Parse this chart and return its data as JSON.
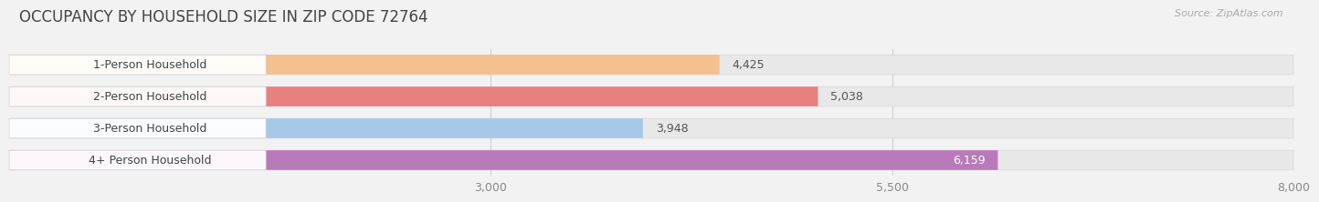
{
  "title": "OCCUPANCY BY HOUSEHOLD SIZE IN ZIP CODE 72764",
  "source": "Source: ZipAtlas.com",
  "categories": [
    "1-Person Household",
    "2-Person Household",
    "3-Person Household",
    "4+ Person Household"
  ],
  "values": [
    4425,
    5038,
    3948,
    6159
  ],
  "bar_colors": [
    "#f5c090",
    "#e88080",
    "#a8c8e8",
    "#b87ab8"
  ],
  "circle_colors": [
    "#e8a060",
    "#c85050",
    "#7098c0",
    "#7840a0"
  ],
  "label_colors": [
    "#444444",
    "#444444",
    "#444444",
    "#ffffff"
  ],
  "xmin": 0,
  "xmax": 8000,
  "xticks": [
    3000,
    5500,
    8000
  ],
  "bar_height": 0.62,
  "background_color": "#f2f2f2",
  "plot_bg_color": "#f2f2f2",
  "title_fontsize": 12,
  "source_fontsize": 8,
  "label_fontsize": 9,
  "value_fontsize": 9,
  "tick_fontsize": 9
}
